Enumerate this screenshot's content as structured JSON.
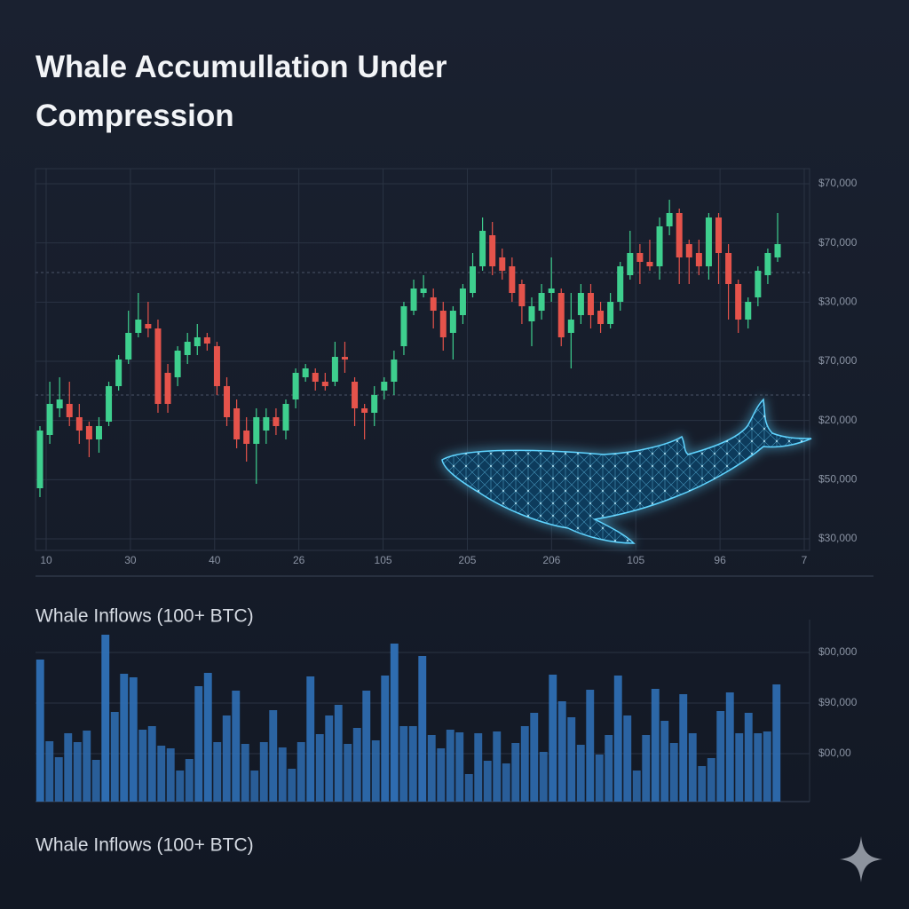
{
  "title": "Whale Accumullation Under Compression",
  "footer": "Whale Inflows (100+ BTC)",
  "chart_data": [
    {
      "type": "candlestick",
      "y_axis_labels": [
        "$70,000",
        "$70,000",
        "$30,000",
        "$70,000",
        "$20,000",
        "$50,000",
        "$30,000"
      ],
      "x_axis_labels": [
        "10",
        "30",
        "40",
        "26",
        "105",
        "205",
        "206",
        "105",
        "96",
        "7"
      ],
      "ylim": [
        0,
        430
      ],
      "up_color": "#3ecf8e",
      "down_color": "#e5534b",
      "open": [
        70,
        130,
        160,
        165,
        150,
        140,
        125,
        145,
        185,
        215,
        245,
        255,
        250,
        200,
        195,
        220,
        230,
        240,
        230,
        185,
        160,
        135,
        120,
        135,
        150,
        135,
        170,
        195,
        200,
        190,
        190,
        218,
        190,
        160,
        155,
        180,
        190,
        230,
        270,
        290,
        285,
        270,
        245,
        265,
        290,
        320,
        355,
        330,
        320,
        300,
        258,
        270,
        290,
        290,
        245,
        265,
        290,
        270,
        255,
        280,
        310,
        335,
        325,
        320,
        365,
        380,
        345,
        335,
        320,
        375,
        335,
        300,
        260,
        285,
        310,
        330
      ],
      "high": [
        140,
        190,
        195,
        190,
        165,
        145,
        150,
        190,
        220,
        270,
        290,
        280,
        260,
        210,
        230,
        245,
        255,
        245,
        235,
        195,
        170,
        150,
        160,
        160,
        160,
        170,
        205,
        210,
        205,
        200,
        235,
        235,
        195,
        165,
        185,
        195,
        225,
        280,
        305,
        310,
        295,
        280,
        275,
        300,
        335,
        375,
        370,
        340,
        330,
        305,
        285,
        300,
        330,
        295,
        290,
        300,
        300,
        280,
        290,
        325,
        360,
        345,
        350,
        375,
        395,
        385,
        350,
        350,
        380,
        380,
        345,
        305,
        285,
        320,
        340,
        380
      ],
      "low": [
        60,
        120,
        150,
        140,
        120,
        105,
        110,
        140,
        180,
        210,
        240,
        240,
        155,
        155,
        185,
        210,
        220,
        225,
        175,
        140,
        115,
        100,
        75,
        120,
        130,
        125,
        160,
        190,
        180,
        180,
        185,
        200,
        140,
        125,
        140,
        170,
        175,
        220,
        265,
        285,
        250,
        225,
        215,
        255,
        285,
        315,
        310,
        305,
        280,
        255,
        230,
        260,
        280,
        230,
        205,
        255,
        250,
        245,
        250,
        270,
        305,
        300,
        315,
        305,
        355,
        300,
        300,
        310,
        305,
        300,
        260,
        245,
        250,
        275,
        300,
        325
      ],
      "close": [
        135,
        165,
        170,
        150,
        135,
        125,
        140,
        185,
        215,
        245,
        260,
        250,
        165,
        165,
        225,
        235,
        240,
        233,
        185,
        150,
        125,
        120,
        150,
        150,
        140,
        165,
        200,
        205,
        190,
        185,
        218,
        215,
        160,
        155,
        175,
        190,
        215,
        275,
        295,
        295,
        270,
        240,
        270,
        295,
        320,
        360,
        320,
        315,
        290,
        275,
        275,
        290,
        295,
        240,
        260,
        290,
        265,
        255,
        280,
        320,
        335,
        325,
        320,
        365,
        380,
        330,
        330,
        320,
        375,
        335,
        300,
        260,
        280,
        315,
        335,
        345
      ]
    },
    {
      "type": "bar",
      "title": "Whale Inflows (100+ BTC)",
      "y_axis_labels": [
        "$00,000",
        "$90,000",
        "$00,00"
      ],
      "ylim": [
        0,
        205
      ],
      "color": "#2f6fb5",
      "values": [
        160,
        68,
        50,
        77,
        67,
        80,
        47,
        188,
        101,
        144,
        140,
        81,
        85,
        63,
        60,
        35,
        48,
        130,
        145,
        67,
        97,
        125,
        65,
        35,
        67,
        103,
        61,
        37,
        67,
        141,
        76,
        97,
        109,
        65,
        83,
        125,
        69,
        142,
        178,
        85,
        85,
        164,
        75,
        60,
        81,
        78,
        31,
        77,
        46,
        79,
        43,
        66,
        85,
        100,
        56,
        143,
        113,
        95,
        64,
        126,
        53,
        75,
        142,
        97,
        35,
        75,
        127,
        91,
        66,
        121,
        77,
        40,
        49,
        102,
        123,
        77,
        100,
        77,
        79,
        132
      ]
    }
  ]
}
